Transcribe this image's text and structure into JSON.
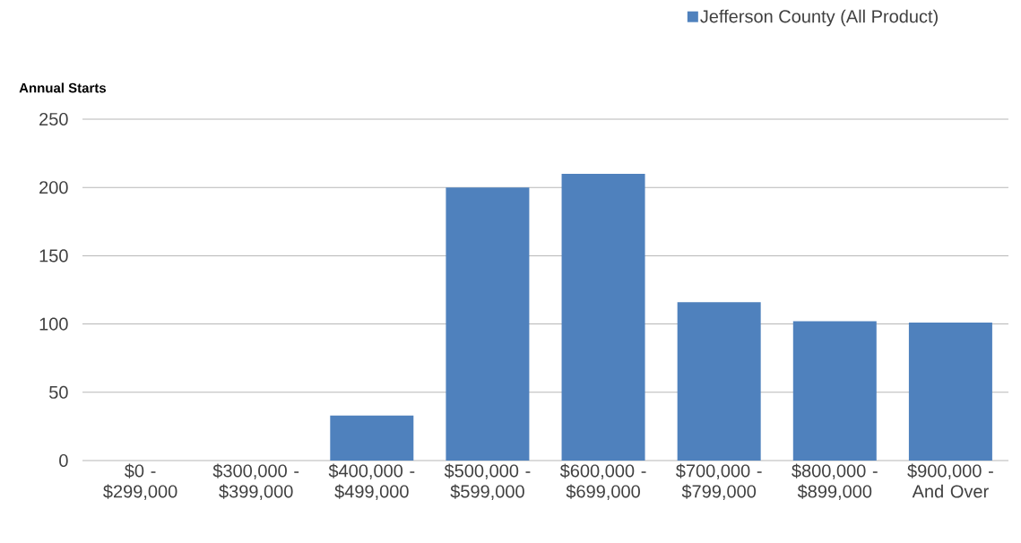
{
  "chart_data": {
    "type": "bar",
    "ylabel": "Annual Starts",
    "categories": [
      "$0 - $299,000",
      "$300,000 - $399,000",
      "$400,000 - $499,000",
      "$500,000 - $599,000",
      "$600,000 - $699,000",
      "$700,000 - $799,000",
      "$800,000 - $899,000",
      "$900,000 - And Over"
    ],
    "series": [
      {
        "name": "Jefferson County (All Product)",
        "color": "#4f81bd",
        "values": [
          0,
          0,
          33,
          200,
          210,
          116,
          102,
          101
        ]
      }
    ],
    "ylim": [
      0,
      250
    ],
    "yticks": [
      0,
      50,
      100,
      150,
      200,
      250
    ],
    "grid": "y",
    "legend": "top right"
  }
}
